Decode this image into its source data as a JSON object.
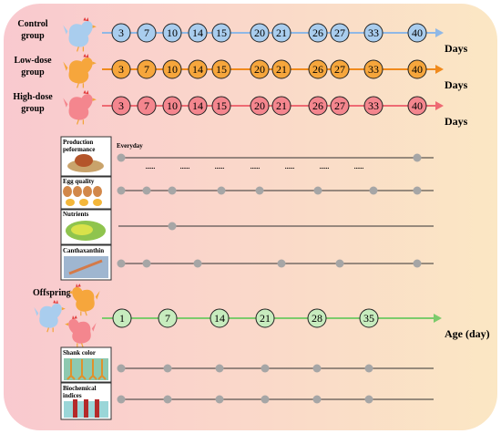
{
  "groups": [
    {
      "label_lines": [
        "Control",
        "group"
      ],
      "color": "#a9cdee",
      "line_color": "#8fb8e6",
      "days": [
        3,
        7,
        10,
        14,
        15,
        20,
        21,
        26,
        27,
        33,
        40
      ],
      "unit": "Days"
    },
    {
      "label_lines": [
        "Low-dose",
        "group"
      ],
      "color": "#f6a63c",
      "line_color": "#f08a1c",
      "days": [
        3,
        7,
        10,
        14,
        15,
        20,
        21,
        26,
        27,
        33,
        40
      ],
      "unit": "Days"
    },
    {
      "label_lines": [
        "High-dose",
        "group"
      ],
      "color": "#f4868e",
      "line_color": "#ee6a73",
      "days": [
        3,
        7,
        10,
        14,
        15,
        20,
        21,
        26,
        27,
        33,
        40
      ],
      "unit": "Days"
    }
  ],
  "indicators": [
    {
      "label_lines": [
        "Production",
        "peformance"
      ],
      "note": "Everyday",
      "dots_label": "......"
    },
    {
      "label_lines": [
        "Egg quality"
      ]
    },
    {
      "label_lines": [
        "Nutrients"
      ]
    },
    {
      "label_lines": [
        "Canthaxanthin"
      ]
    }
  ],
  "offspring": {
    "label": "Offspring",
    "color": "#c7ecbe",
    "line_color": "#7ccb6c",
    "ages": [
      1,
      7,
      14,
      21,
      28,
      35
    ],
    "unit": "Age (day)",
    "indicators": [
      {
        "label_lines": [
          "Shank color"
        ]
      },
      {
        "label_lines": [
          "Biochemical",
          "indices"
        ]
      }
    ]
  },
  "colors": {
    "bg_left": "#f9c9cf",
    "bg_right": "#fbe7c4",
    "dot": "#a6a6a6"
  }
}
